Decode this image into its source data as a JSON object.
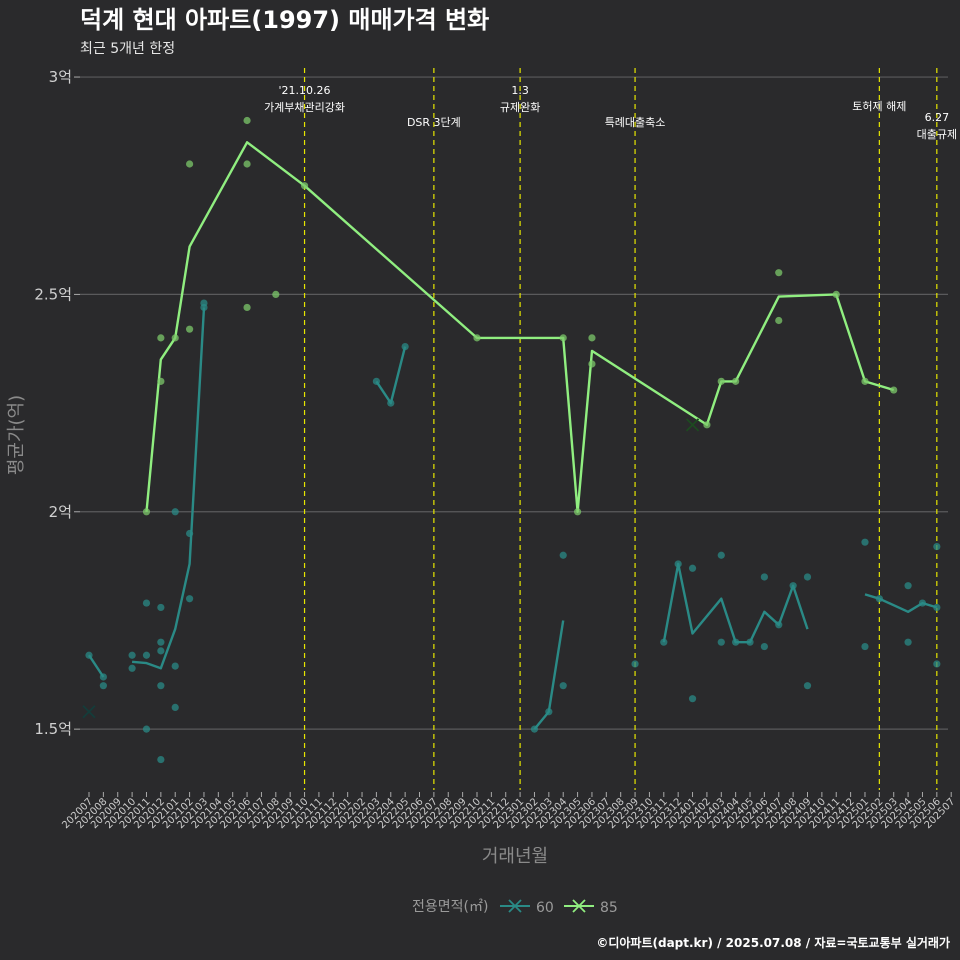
{
  "header": {
    "title": "덕계 현대 아파트(1997) 매매가격 변화",
    "subtitle": "최근 5개년 한정"
  },
  "caption": "©디아파트(dapt.kr) / 2025.07.08 / 자료=국토교통부 실거래가",
  "colors": {
    "background": "#2a2a2c",
    "grid": "#5a5a5c",
    "event_line": "#e6e600",
    "series_60": "#2a8a86",
    "series_85": "#90ee80",
    "point_85": "#7cc86a"
  },
  "chart_data": {
    "type": "line",
    "xlabel": "거래년월",
    "ylabel": "평균가(억)",
    "ylim": [
      1.36,
      3.03
    ],
    "y_ticks": [
      {
        "value": 1.5,
        "label": "1.5억"
      },
      {
        "value": 2.0,
        "label": "2억"
      },
      {
        "value": 2.5,
        "label": "2.5억"
      },
      {
        "value": 3.0,
        "label": "3억"
      }
    ],
    "x_months": [
      "202007",
      "202008",
      "202009",
      "202010",
      "202011",
      "202012",
      "202101",
      "202102",
      "202103",
      "202104",
      "202105",
      "202106",
      "202107",
      "202108",
      "202109",
      "202110",
      "202111",
      "202112",
      "202201",
      "202202",
      "202203",
      "202204",
      "202205",
      "202206",
      "202207",
      "202208",
      "202209",
      "202210",
      "202211",
      "202212",
      "202301",
      "202302",
      "202303",
      "202304",
      "202305",
      "202306",
      "202307",
      "202308",
      "202309",
      "202310",
      "202311",
      "202312",
      "202401",
      "202402",
      "202403",
      "202404",
      "202405",
      "202406",
      "202407",
      "202408",
      "202409",
      "202410",
      "202411",
      "202412",
      "202501",
      "202502",
      "202503",
      "202504",
      "202505",
      "202506",
      "202507"
    ],
    "legend": {
      "title": "전용면적(㎡)",
      "items": [
        {
          "key": "60",
          "label": "60"
        },
        {
          "key": "85",
          "label": "85"
        }
      ]
    },
    "events": [
      {
        "month": "202110",
        "lines": [
          "'21.10.26",
          "가계부채관리강화"
        ],
        "row": 0
      },
      {
        "month": "202207",
        "lines": [
          "DSR 3단계"
        ],
        "row": 2
      },
      {
        "month": "202301",
        "lines": [
          "1.3",
          "규제완화"
        ],
        "row": 0
      },
      {
        "month": "202309",
        "lines": [
          "특례대출축소"
        ],
        "row": 2
      },
      {
        "month": "202502",
        "lines": [
          "토허제 해제"
        ],
        "row": 1
      },
      {
        "month": "202506",
        "lines": [
          "6.27",
          "대출규제"
        ],
        "row": 1.7
      }
    ],
    "series": [
      {
        "name": "60",
        "segments": [
          [
            [
              "202007",
              1.67
            ],
            [
              "202008",
              1.62
            ]
          ],
          [
            [
              "202010",
              1.655
            ],
            [
              "202011",
              1.652
            ],
            [
              "202012",
              1.64
            ],
            [
              "202101",
              1.73
            ],
            [
              "202102",
              1.88
            ],
            [
              "202103",
              2.47
            ]
          ],
          [
            [
              "202203",
              2.3
            ],
            [
              "202204",
              2.25
            ],
            [
              "202205",
              2.38
            ]
          ],
          [
            [
              "202302",
              1.5
            ],
            [
              "202303",
              1.54
            ],
            [
              "202304",
              1.75
            ]
          ],
          [
            [
              "202311",
              1.7
            ],
            [
              "202312",
              1.88
            ],
            [
              "202401",
              1.72
            ],
            [
              "202403",
              1.8
            ],
            [
              "202404",
              1.7
            ],
            [
              "202405",
              1.7
            ],
            [
              "202406",
              1.77
            ],
            [
              "202407",
              1.74
            ],
            [
              "202408",
              1.83
            ],
            [
              "202409",
              1.73
            ]
          ],
          [
            [
              "202501",
              1.81
            ],
            [
              "202502",
              1.8
            ],
            [
              "202504",
              1.77
            ],
            [
              "202505",
              1.79
            ],
            [
              "202506",
              1.78
            ]
          ]
        ],
        "points": [
          [
            "202007",
            1.67
          ],
          [
            "202008",
            1.62
          ],
          [
            "202008",
            1.6
          ],
          [
            "202010",
            1.67
          ],
          [
            "202010",
            1.64
          ],
          [
            "202011",
            1.79
          ],
          [
            "202011",
            1.67
          ],
          [
            "202011",
            1.5
          ],
          [
            "202012",
            1.78
          ],
          [
            "202012",
            1.7
          ],
          [
            "202012",
            1.68
          ],
          [
            "202012",
            1.6
          ],
          [
            "202012",
            1.43
          ],
          [
            "202101",
            2.0
          ],
          [
            "202101",
            1.645
          ],
          [
            "202101",
            1.55
          ],
          [
            "202102",
            1.95
          ],
          [
            "202102",
            1.8
          ],
          [
            "202103",
            2.48
          ],
          [
            "202103",
            2.47
          ],
          [
            "202203",
            2.3
          ],
          [
            "202204",
            2.25
          ],
          [
            "202205",
            2.38
          ],
          [
            "202302",
            1.5
          ],
          [
            "202303",
            1.54
          ],
          [
            "202304",
            1.9
          ],
          [
            "202304",
            1.6
          ],
          [
            "202309",
            1.65
          ],
          [
            "202311",
            1.7
          ],
          [
            "202312",
            1.88
          ],
          [
            "202401",
            1.87
          ],
          [
            "202401",
            1.57
          ],
          [
            "202403",
            1.9
          ],
          [
            "202403",
            1.7
          ],
          [
            "202404",
            1.7
          ],
          [
            "202405",
            1.7
          ],
          [
            "202406",
            1.85
          ],
          [
            "202406",
            1.69
          ],
          [
            "202407",
            1.74
          ],
          [
            "202408",
            1.83
          ],
          [
            "202409",
            1.85
          ],
          [
            "202409",
            1.6
          ],
          [
            "202501",
            1.93
          ],
          [
            "202501",
            1.69
          ],
          [
            "202502",
            1.8
          ],
          [
            "202504",
            1.83
          ],
          [
            "202504",
            1.7
          ],
          [
            "202505",
            1.79
          ],
          [
            "202506",
            1.92
          ],
          [
            "202506",
            1.78
          ],
          [
            "202506",
            1.65
          ]
        ],
        "crosses": [
          [
            "202007",
            1.54
          ]
        ]
      },
      {
        "name": "85",
        "segments": [
          [
            [
              "202011",
              2.0
            ],
            [
              "202012",
              2.35
            ],
            [
              "202101",
              2.4
            ],
            [
              "202102",
              2.61
            ],
            [
              "202106",
              2.85
            ],
            [
              "202110",
              2.75
            ],
            [
              "202210",
              2.4
            ],
            [
              "202304",
              2.4
            ],
            [
              "202305",
              2.0
            ],
            [
              "202306",
              2.37
            ],
            [
              "202402",
              2.2
            ],
            [
              "202403",
              2.3
            ],
            [
              "202404",
              2.3
            ],
            [
              "202407",
              2.495
            ],
            [
              "202411",
              2.5
            ],
            [
              "202501",
              2.3
            ],
            [
              "202503",
              2.28
            ]
          ]
        ],
        "points": [
          [
            "202011",
            2.0
          ],
          [
            "202012",
            2.4
          ],
          [
            "202012",
            2.3
          ],
          [
            "202101",
            2.4
          ],
          [
            "202102",
            2.8
          ],
          [
            "202102",
            2.42
          ],
          [
            "202106",
            2.9
          ],
          [
            "202106",
            2.8
          ],
          [
            "202106",
            2.47
          ],
          [
            "202108",
            2.5
          ],
          [
            "202110",
            2.75
          ],
          [
            "202210",
            2.4
          ],
          [
            "202304",
            2.4
          ],
          [
            "202305",
            2.0
          ],
          [
            "202306",
            2.4
          ],
          [
            "202306",
            2.34
          ],
          [
            "202402",
            2.2
          ],
          [
            "202403",
            2.3
          ],
          [
            "202404",
            2.3
          ],
          [
            "202407",
            2.55
          ],
          [
            "202407",
            2.44
          ],
          [
            "202411",
            2.5
          ],
          [
            "202501",
            2.3
          ],
          [
            "202503",
            2.28
          ]
        ],
        "crosses": [
          [
            "202401",
            2.2
          ]
        ]
      }
    ]
  }
}
